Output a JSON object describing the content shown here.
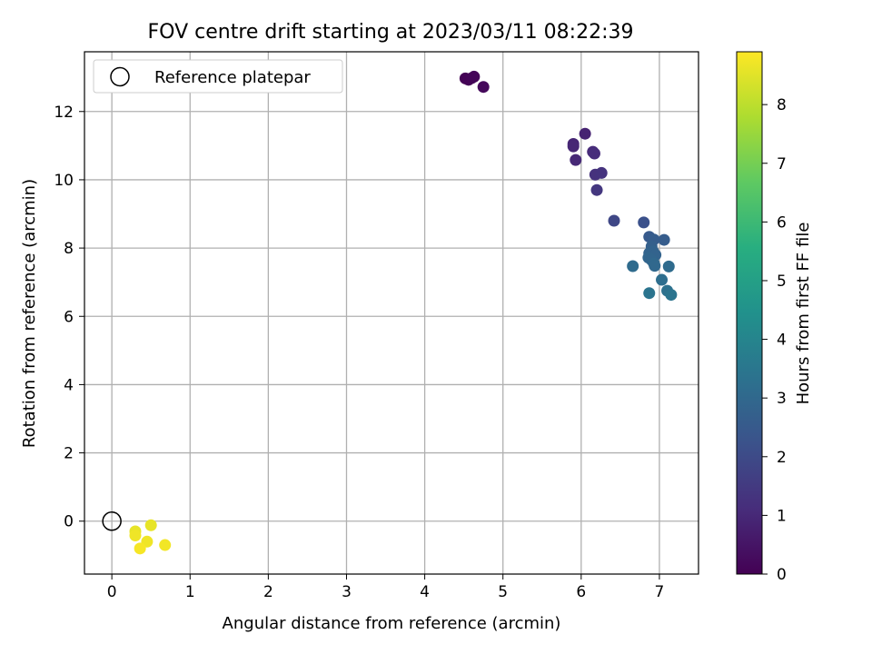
{
  "chart_data": {
    "type": "scatter",
    "title": "FOV centre drift starting at 2023/03/11 08:22:39",
    "xlabel": "Angular distance from reference (arcmin)",
    "ylabel": "Rotation from reference (arcmin)",
    "xlim": [
      -0.35,
      7.5
    ],
    "ylim": [
      -1.55,
      13.75
    ],
    "xticks": [
      0,
      1,
      2,
      3,
      4,
      5,
      6,
      7
    ],
    "yticks": [
      0,
      2,
      4,
      6,
      8,
      10,
      12
    ],
    "grid": true,
    "legend": {
      "position": "top-left",
      "entries": [
        "Reference platepar"
      ]
    },
    "reference": {
      "x": 0,
      "y": 0
    },
    "colorbar": {
      "label": "Hours from first FF file",
      "colormap": "viridis",
      "range": [
        0,
        8.9
      ],
      "ticks": [
        0,
        1,
        2,
        3,
        4,
        5,
        6,
        7,
        8
      ]
    },
    "points": [
      {
        "x": 4.52,
        "y": 12.97,
        "hours": 0.02
      },
      {
        "x": 4.56,
        "y": 12.93,
        "hours": 0.05
      },
      {
        "x": 4.6,
        "y": 12.98,
        "hours": 0.08
      },
      {
        "x": 4.63,
        "y": 13.02,
        "hours": 0.1
      },
      {
        "x": 4.75,
        "y": 12.72,
        "hours": 0.2
      },
      {
        "x": 5.9,
        "y": 11.05,
        "hours": 0.9
      },
      {
        "x": 5.9,
        "y": 10.98,
        "hours": 0.95
      },
      {
        "x": 5.93,
        "y": 10.58,
        "hours": 1.0
      },
      {
        "x": 6.05,
        "y": 11.35,
        "hours": 0.85
      },
      {
        "x": 6.15,
        "y": 10.82,
        "hours": 1.05
      },
      {
        "x": 6.17,
        "y": 10.77,
        "hours": 1.1
      },
      {
        "x": 6.18,
        "y": 10.15,
        "hours": 1.25
      },
      {
        "x": 6.26,
        "y": 10.2,
        "hours": 1.3
      },
      {
        "x": 6.2,
        "y": 9.7,
        "hours": 1.4
      },
      {
        "x": 6.42,
        "y": 8.8,
        "hours": 1.9
      },
      {
        "x": 6.8,
        "y": 8.75,
        "hours": 2.2
      },
      {
        "x": 6.87,
        "y": 8.33,
        "hours": 2.5
      },
      {
        "x": 6.93,
        "y": 8.25,
        "hours": 2.6
      },
      {
        "x": 7.06,
        "y": 8.24,
        "hours": 2.6
      },
      {
        "x": 6.9,
        "y": 8.05,
        "hours": 2.7
      },
      {
        "x": 6.87,
        "y": 7.85,
        "hours": 2.8
      },
      {
        "x": 6.92,
        "y": 7.9,
        "hours": 2.8
      },
      {
        "x": 6.95,
        "y": 7.8,
        "hours": 2.8
      },
      {
        "x": 6.86,
        "y": 7.72,
        "hours": 2.9
      },
      {
        "x": 6.9,
        "y": 7.65,
        "hours": 2.9
      },
      {
        "x": 6.93,
        "y": 7.55,
        "hours": 3.0
      },
      {
        "x": 6.94,
        "y": 7.48,
        "hours": 3.0
      },
      {
        "x": 6.66,
        "y": 7.47,
        "hours": 3.1
      },
      {
        "x": 7.12,
        "y": 7.46,
        "hours": 3.1
      },
      {
        "x": 7.03,
        "y": 7.07,
        "hours": 3.2
      },
      {
        "x": 7.1,
        "y": 6.75,
        "hours": 3.3
      },
      {
        "x": 7.15,
        "y": 6.63,
        "hours": 3.4
      },
      {
        "x": 6.87,
        "y": 6.68,
        "hours": 3.4
      },
      {
        "x": 0.3,
        "y": -0.3,
        "hours": 8.6
      },
      {
        "x": 0.3,
        "y": -0.42,
        "hours": 8.7
      },
      {
        "x": 0.5,
        "y": -0.12,
        "hours": 8.6
      },
      {
        "x": 0.45,
        "y": -0.6,
        "hours": 8.7
      },
      {
        "x": 0.36,
        "y": -0.8,
        "hours": 8.8
      },
      {
        "x": 0.68,
        "y": -0.7,
        "hours": 8.75
      }
    ]
  }
}
